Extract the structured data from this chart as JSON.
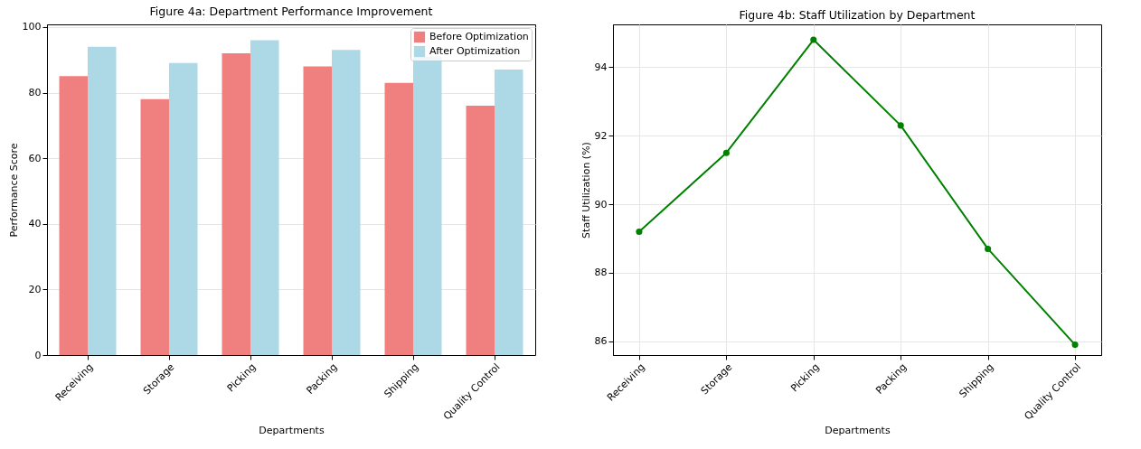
{
  "chart_data": [
    {
      "type": "bar",
      "title": "Figure 4a: Department Performance Improvement",
      "xlabel": "Departments",
      "ylabel": "Performance Score",
      "categories": [
        "Receiving",
        "Storage",
        "Picking",
        "Packing",
        "Shipping",
        "Quality Control"
      ],
      "series": [
        {
          "name": "Before Optimization",
          "color": "#f08080",
          "values": [
            85,
            78,
            92,
            88,
            83,
            76
          ]
        },
        {
          "name": "After Optimization",
          "color": "#add8e6",
          "values": [
            94,
            89,
            96,
            93,
            91,
            87
          ]
        }
      ],
      "ylim": [
        0,
        100.8
      ],
      "yticks": [
        0,
        20,
        40,
        60,
        80,
        100
      ],
      "grid": "y",
      "legend": "top right"
    },
    {
      "type": "line",
      "title": "Figure 4b: Staff Utilization by Department",
      "xlabel": "Departments",
      "ylabel": "Staff Utilization (%)",
      "categories": [
        "Receiving",
        "Storage",
        "Picking",
        "Packing",
        "Shipping",
        "Quality Control"
      ],
      "series": [
        {
          "color": "#008000",
          "values": [
            89.2,
            91.5,
            94.8,
            92.3,
            88.7,
            85.9
          ]
        }
      ],
      "ylim": [
        85.6,
        95.25
      ],
      "yticks": [
        86,
        88,
        90,
        92,
        94
      ],
      "grid": true,
      "marker": "circle",
      "line_style": "solid"
    }
  ]
}
